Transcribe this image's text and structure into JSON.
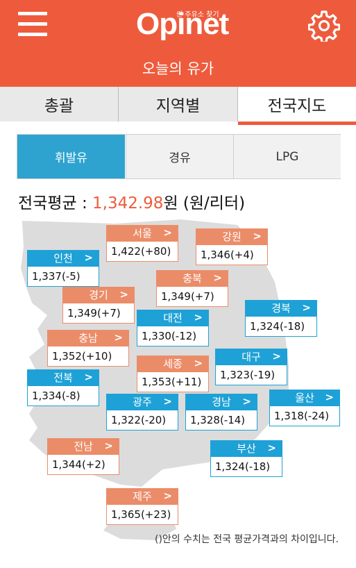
{
  "header": {
    "logo_text": "Opinet",
    "logo_subtitle": "싼 주유소 찾기",
    "title": "오늘의 유가"
  },
  "tabs": [
    {
      "label": "총괄"
    },
    {
      "label": "지역별"
    },
    {
      "label": "전국지도"
    }
  ],
  "fuel_tabs": [
    {
      "label": "휘발유"
    },
    {
      "label": "경유"
    },
    {
      "label": "LPG"
    }
  ],
  "average": {
    "prefix": "전국평균 : ",
    "value": "1,342.98",
    "suffix": "원 (원/리터)"
  },
  "regions": [
    {
      "name": "서울",
      "price": "1,422(+80)",
      "color": "#eb8c69"
    },
    {
      "name": "강원",
      "price": "1,346(+4)",
      "color": "#eb8c69"
    },
    {
      "name": "인천",
      "price": "1,337(-5)",
      "color": "#1ea1d6"
    },
    {
      "name": "충북",
      "price": "1,349(+7)",
      "color": "#eb8c69"
    },
    {
      "name": "경기",
      "price": "1,349(+7)",
      "color": "#eb8c69"
    },
    {
      "name": "경북",
      "price": "1,324(-18)",
      "color": "#1ea1d6"
    },
    {
      "name": "대전",
      "price": "1,330(-12)",
      "color": "#1ea1d6"
    },
    {
      "name": "충남",
      "price": "1,352(+10)",
      "color": "#eb8c69"
    },
    {
      "name": "대구",
      "price": "1,323(-19)",
      "color": "#1ea1d6"
    },
    {
      "name": "세종",
      "price": "1,353(+11)",
      "color": "#eb8c69"
    },
    {
      "name": "전북",
      "price": "1,334(-8)",
      "color": "#1ea1d6"
    },
    {
      "name": "울산",
      "price": "1,318(-24)",
      "color": "#1ea1d6"
    },
    {
      "name": "광주",
      "price": "1,322(-20)",
      "color": "#1ea1d6"
    },
    {
      "name": "경남",
      "price": "1,328(-14)",
      "color": "#1ea1d6"
    },
    {
      "name": "전남",
      "price": "1,344(+2)",
      "color": "#eb8c69"
    },
    {
      "name": "부산",
      "price": "1,324(-18)",
      "color": "#1ea1d6"
    },
    {
      "name": "제주",
      "price": "1,365(+23)",
      "color": "#eb8c69"
    }
  ],
  "footnote": "()안의 수치는 전국 평균가격과의 차이입니다.",
  "colors": {
    "brand": "#ee5b3c",
    "above_average": "#eb8c69",
    "below_average": "#1ea1d6",
    "active_fuel": "#2ea3cf"
  }
}
